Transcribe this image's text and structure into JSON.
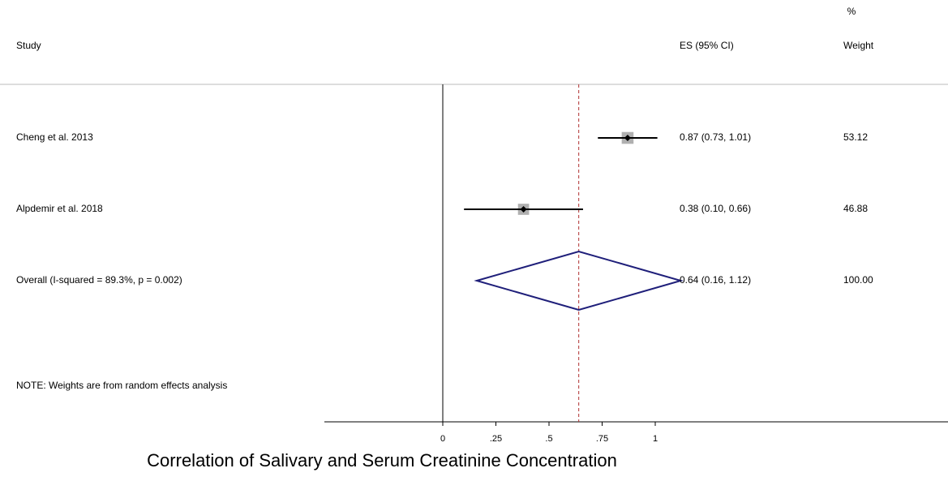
{
  "chart_data": {
    "type": "forest",
    "header": {
      "study": "Study",
      "es": "ES (95% CI)",
      "weight_top": "%",
      "weight": "Weight"
    },
    "studies": [
      {
        "name": "Cheng et al. 2013",
        "es": 0.87,
        "ci": [
          0.73,
          1.01
        ],
        "label": "0.87 (0.73, 1.01)",
        "weight": 53.12
      },
      {
        "name": "Alpdemir et al. 2018",
        "es": 0.38,
        "ci": [
          0.1,
          0.66
        ],
        "label": "0.38 (0.10, 0.66)",
        "weight": 46.88
      }
    ],
    "overall": {
      "name": "Overall  (I-squared = 89.3%, p = 0.002)",
      "es": 0.64,
      "ci": [
        0.16,
        1.12
      ],
      "label": "0.64 (0.16, 1.12)",
      "weight": {
        "value": 100,
        "label": "100.00"
      }
    },
    "note": "NOTE: Weights are from random effects analysis",
    "xlabel": "Correlation of Salivary and Serum Creatinine Concentration",
    "xlim": [
      0,
      1
    ],
    "xticks": [
      0,
      {
        "value": 0.25,
        "label": ".25"
      },
      {
        "value": 0.5,
        "label": ".5"
      },
      {
        "value": 0.75,
        "label": ".75"
      },
      1
    ],
    "marker_color": "#b0b0b0",
    "diamond_color": "#1f1f7a",
    "refline_color": "#b03030"
  }
}
